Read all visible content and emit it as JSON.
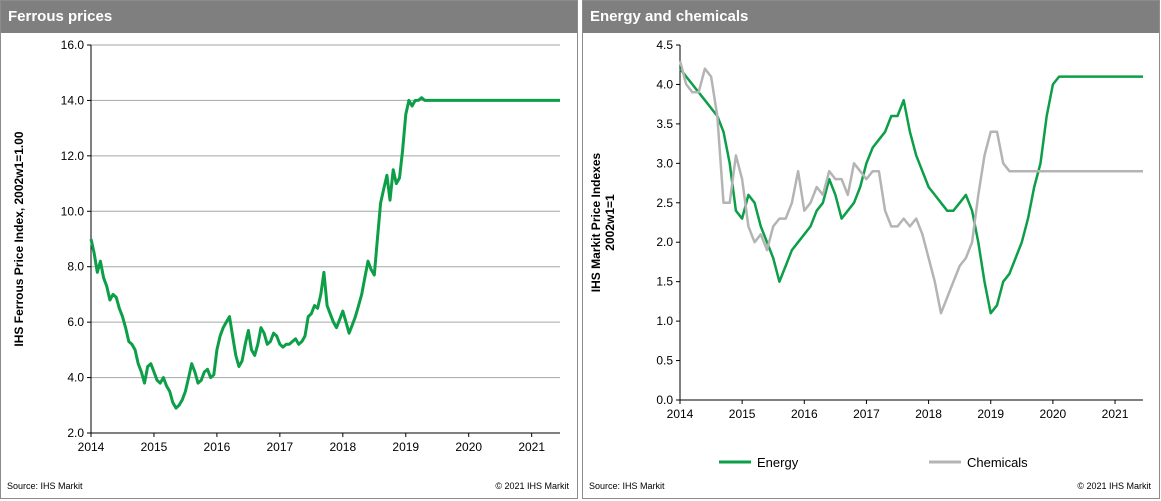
{
  "colors": {
    "energy": "#0d9e48",
    "chemicals": "#b4b4b4",
    "ferrous": "#0d9e48",
    "grid": "#a6a6a6",
    "header": "#7f7f7f"
  },
  "left_panel": {
    "title": "Ferrous prices",
    "source": "Source:  IHS Markit",
    "copyright": "© 2021  IHS Markit"
  },
  "right_panel": {
    "title": "Energy and chemicals",
    "source": "Source:  IHS Markit",
    "copyright": "© 2021  IHS Markit"
  },
  "chart_data": [
    {
      "type": "line",
      "title": "Ferrous prices",
      "xlabel": "",
      "ylabel": "IHS Ferrous Price Index, 2002w1=1.00",
      "xlim": [
        2014,
        2021.45
      ],
      "ylim": [
        2.0,
        16.0
      ],
      "yticks": [
        "2.0",
        "4.0",
        "6.0",
        "8.0",
        "10.0",
        "12.0",
        "14.0",
        "16.0"
      ],
      "xticks": [
        "2014",
        "2015",
        "2016",
        "2017",
        "2018",
        "2019",
        "2020",
        "2021"
      ],
      "grid": true,
      "series": [
        {
          "name": "",
          "x": [
            2014.0,
            2014.05,
            2014.1,
            2014.15,
            2014.2,
            2014.25,
            2014.3,
            2014.35,
            2014.4,
            2014.45,
            2014.5,
            2014.55,
            2014.6,
            2014.65,
            2014.7,
            2014.75,
            2014.8,
            2014.85,
            2014.9,
            2014.95,
            2015.0,
            2015.05,
            2015.1,
            2015.15,
            2015.2,
            2015.25,
            2015.3,
            2015.35,
            2015.4,
            2015.45,
            2015.5,
            2015.55,
            2015.6,
            2015.65,
            2015.7,
            2015.75,
            2015.8,
            2015.85,
            2015.9,
            2015.95,
            2016.0,
            2016.05,
            2016.1,
            2016.15,
            2016.2,
            2016.25,
            2016.3,
            2016.35,
            2016.4,
            2016.45,
            2016.5,
            2016.55,
            2016.6,
            2016.65,
            2016.7,
            2016.75,
            2016.8,
            2016.85,
            2016.9,
            2016.95,
            2017.0,
            2017.05,
            2017.1,
            2017.15,
            2017.2,
            2017.25,
            2017.3,
            2017.35,
            2017.4,
            2017.45,
            2017.5,
            2017.55,
            2017.6,
            2017.65,
            2017.7,
            2017.75,
            2017.8,
            2017.85,
            2017.9,
            2017.95,
            2018.0,
            2018.05,
            2018.1,
            2018.15,
            2018.2,
            2018.25,
            2018.3,
            2018.35,
            2018.4,
            2018.45,
            2018.5,
            2018.55,
            2018.6,
            2018.65,
            2018.7,
            2018.75,
            2018.8,
            2018.85,
            2018.9,
            2018.95,
            2019.0,
            2019.05,
            2019.1,
            2019.15,
            2019.2,
            2019.25,
            2019.3,
            2019.35,
            2019.4,
            2019.45,
            2019.5,
            2019.55,
            2019.6,
            2019.65,
            2019.7,
            2019.75,
            2019.8,
            2019.85,
            2019.9,
            2019.95,
            2020.0,
            2020.05,
            2020.1,
            2020.15,
            2020.2,
            2020.25,
            2020.3,
            2020.35,
            2020.4,
            2020.45,
            2020.5,
            2020.55,
            2020.6,
            2020.65,
            2020.7,
            2020.75,
            2020.8,
            2020.85,
            2020.9,
            2020.95,
            2021.0,
            2021.03,
            2021.06,
            2021.09,
            2021.12,
            2021.15,
            2021.18,
            2021.21,
            2021.24,
            2021.27,
            2021.3,
            2021.33,
            2021.36,
            2021.39,
            2021.42,
            2021.45
          ],
          "values": [
            9.0,
            8.5,
            7.8,
            8.2,
            7.6,
            7.3,
            6.8,
            7.0,
            6.9,
            6.5,
            6.2,
            5.8,
            5.3,
            5.2,
            5.0,
            4.5,
            4.2,
            3.8,
            4.4,
            4.5,
            4.2,
            3.9,
            3.8,
            4.0,
            3.7,
            3.5,
            3.1,
            2.9,
            3.0,
            3.2,
            3.5,
            4.0,
            4.5,
            4.2,
            3.8,
            3.9,
            4.2,
            4.3,
            4.0,
            4.1,
            5.0,
            5.5,
            5.8,
            6.0,
            6.2,
            5.5,
            4.8,
            4.4,
            4.6,
            5.2,
            5.7,
            5.0,
            4.8,
            5.2,
            5.8,
            5.6,
            5.2,
            5.3,
            5.6,
            5.5,
            5.2,
            5.1,
            5.2,
            5.2,
            5.3,
            5.4,
            5.2,
            5.3,
            5.5,
            6.2,
            6.3,
            6.6,
            6.5,
            7.0,
            7.8,
            6.6,
            6.3,
            6.0,
            5.8,
            6.1,
            6.4,
            6.0,
            5.6,
            5.9,
            6.2,
            6.6,
            7.0,
            7.6,
            8.2,
            7.9,
            7.7,
            9.0,
            10.3,
            10.8,
            11.3,
            10.4,
            11.5,
            11.0,
            11.2,
            12.2,
            13.5,
            14.0,
            13.8,
            14.0,
            14.0,
            14.1,
            14.0,
            14.0,
            14.0,
            14.0,
            14.0,
            14.0,
            14.0,
            14.0,
            14.0,
            14.0,
            14.0,
            14.0,
            14.0,
            14.0,
            14.0,
            14.0,
            14.0,
            14.0,
            14.0,
            14.0,
            14.0,
            14.0,
            14.0,
            14.0,
            14.0,
            14.0,
            14.0,
            14.0,
            14.0,
            14.0,
            14.0,
            14.0,
            14.0,
            14.0,
            14.0,
            14.0,
            14.0,
            14.0,
            14.0,
            14.0,
            14.0,
            14.0,
            14.0,
            14.0,
            14.0,
            14.0,
            14.0,
            14.0,
            14.0,
            14.0
          ]
        }
      ]
    },
    {
      "type": "line",
      "title": "Energy and chemicals",
      "xlabel": "",
      "ylabel": "IHS Markit Price Indexes 2002w1=1",
      "ylabel_lines": [
        "IHS Markit Price Indexes",
        "2002w1=1"
      ],
      "xlim": [
        2014,
        2021.45
      ],
      "ylim": [
        0.0,
        4.5
      ],
      "yticks": [
        "0.0",
        "0.5",
        "1.0",
        "1.5",
        "2.0",
        "2.5",
        "3.0",
        "3.5",
        "4.0",
        "4.5"
      ],
      "xticks": [
        "2014",
        "2015",
        "2016",
        "2017",
        "2018",
        "2019",
        "2020",
        "2021"
      ],
      "grid": false,
      "legend": "bottom",
      "series": [
        {
          "name": "Energy",
          "x": [
            2014.0,
            2014.1,
            2014.2,
            2014.3,
            2014.4,
            2014.5,
            2014.6,
            2014.7,
            2014.8,
            2014.9,
            2015.0,
            2015.1,
            2015.2,
            2015.3,
            2015.4,
            2015.5,
            2015.6,
            2015.7,
            2015.8,
            2015.9,
            2016.0,
            2016.1,
            2016.2,
            2016.3,
            2016.4,
            2016.5,
            2016.6,
            2016.7,
            2016.8,
            2016.9,
            2017.0,
            2017.1,
            2017.2,
            2017.3,
            2017.4,
            2017.5,
            2017.6,
            2017.7,
            2017.8,
            2017.9,
            2018.0,
            2018.1,
            2018.2,
            2018.3,
            2018.4,
            2018.5,
            2018.6,
            2018.7,
            2018.8,
            2018.9,
            2019.0,
            2019.1,
            2019.2,
            2019.3,
            2019.4,
            2019.5,
            2019.6,
            2019.7,
            2019.8,
            2019.9,
            2020.0,
            2020.1,
            2020.2,
            2020.3,
            2020.4,
            2020.5,
            2020.6,
            2020.7,
            2020.8,
            2020.9,
            2021.0,
            2021.1,
            2021.2,
            2021.3,
            2021.4,
            2021.45
          ],
          "values": [
            4.2,
            4.1,
            4.0,
            3.9,
            3.8,
            3.7,
            3.6,
            3.4,
            3.0,
            2.4,
            2.3,
            2.6,
            2.5,
            2.2,
            2.0,
            1.8,
            1.5,
            1.7,
            1.9,
            2.0,
            2.1,
            2.2,
            2.4,
            2.5,
            2.8,
            2.6,
            2.3,
            2.4,
            2.5,
            2.7,
            3.0,
            3.2,
            3.3,
            3.4,
            3.6,
            3.6,
            3.8,
            3.4,
            3.1,
            2.9,
            2.7,
            2.6,
            2.5,
            2.4,
            2.4,
            2.5,
            2.6,
            2.4,
            2.0,
            1.5,
            1.1,
            1.2,
            1.5,
            1.6,
            1.8,
            2.0,
            2.3,
            2.7,
            3.0,
            3.6,
            4.0,
            4.1,
            4.1,
            4.1,
            4.1,
            4.1,
            4.1,
            4.1,
            4.1,
            4.1,
            4.1,
            4.1,
            4.1,
            4.1,
            4.1,
            4.1
          ]
        },
        {
          "name": "Chemicals",
          "x": [
            2014.0,
            2014.1,
            2014.2,
            2014.3,
            2014.4,
            2014.5,
            2014.6,
            2014.7,
            2014.8,
            2014.9,
            2015.0,
            2015.1,
            2015.2,
            2015.3,
            2015.4,
            2015.5,
            2015.6,
            2015.7,
            2015.8,
            2015.9,
            2016.0,
            2016.1,
            2016.2,
            2016.3,
            2016.4,
            2016.5,
            2016.6,
            2016.7,
            2016.8,
            2016.9,
            2017.0,
            2017.1,
            2017.2,
            2017.3,
            2017.4,
            2017.5,
            2017.6,
            2017.7,
            2017.8,
            2017.9,
            2018.0,
            2018.1,
            2018.2,
            2018.3,
            2018.4,
            2018.5,
            2018.6,
            2018.7,
            2018.8,
            2018.9,
            2019.0,
            2019.1,
            2019.2,
            2019.3,
            2019.4,
            2019.5,
            2019.6,
            2019.7,
            2019.8,
            2019.9,
            2020.0,
            2020.1,
            2020.2,
            2020.3,
            2020.4,
            2020.5,
            2020.6,
            2020.7,
            2020.8,
            2020.9,
            2021.0,
            2021.1,
            2021.2,
            2021.3,
            2021.4,
            2021.45
          ],
          "values": [
            4.3,
            4.0,
            3.9,
            3.9,
            4.2,
            4.1,
            3.6,
            2.5,
            2.5,
            3.1,
            2.8,
            2.2,
            2.0,
            2.1,
            1.9,
            2.2,
            2.3,
            2.3,
            2.5,
            2.9,
            2.4,
            2.5,
            2.7,
            2.6,
            2.9,
            2.8,
            2.8,
            2.6,
            3.0,
            2.9,
            2.8,
            2.9,
            2.9,
            2.4,
            2.2,
            2.2,
            2.3,
            2.2,
            2.3,
            2.1,
            1.8,
            1.5,
            1.1,
            1.3,
            1.5,
            1.7,
            1.8,
            2.0,
            2.6,
            3.1,
            3.4,
            3.4,
            3.0,
            2.9,
            2.9,
            2.9,
            2.9,
            2.9,
            2.9,
            2.9,
            2.9,
            2.9,
            2.9,
            2.9,
            2.9,
            2.9,
            2.9,
            2.9,
            2.9,
            2.9,
            2.9,
            2.9,
            2.9,
            2.9,
            2.9,
            2.9
          ]
        }
      ]
    }
  ]
}
